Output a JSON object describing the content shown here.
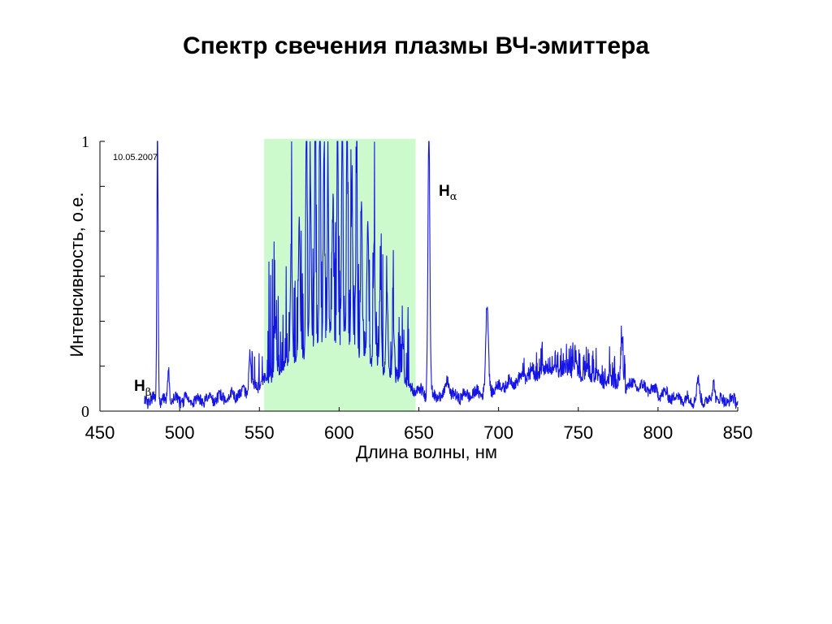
{
  "slide": {
    "title": "Спектр свечения плазмы ВЧ-эмиттера"
  },
  "chart_data": {
    "type": "line",
    "title": "Спектр свечения плазмы ВЧ-эмиттера",
    "xlabel": "Длина волны, нм",
    "ylabel": "Интенсивность, о.е.",
    "xlim": [
      450,
      850
    ],
    "ylim": [
      0,
      1
    ],
    "x_ticks": [
      450,
      500,
      550,
      600,
      650,
      700,
      750,
      800,
      850
    ],
    "y_tick_labels": {
      "0": "0",
      "1": "1"
    },
    "date_annotation": "10.05.2007",
    "grid": false,
    "line_color": "#1414e6",
    "highlight": {
      "from": 553,
      "to": 648,
      "color": "#ccfacc"
    },
    "annotations": [
      {
        "text": "H",
        "subscript": "β",
        "x": 486
      },
      {
        "text": "H",
        "subscript": "α",
        "x": 656.3
      }
    ],
    "series": [
      {
        "x_range": [
          478,
          850
        ],
        "baseline": 0.04,
        "peaks": [
          {
            "x": 486.1,
            "y": 1.0,
            "w": 0.4
          },
          {
            "x": 493.0,
            "y": 0.12,
            "w": 0.5
          },
          {
            "x": 544.0,
            "y": 0.14,
            "w": 0.6
          },
          {
            "x": 560.0,
            "y": 0.16,
            "w": 0.6
          },
          {
            "x": 570.0,
            "y": 0.42,
            "w": 0.6
          },
          {
            "x": 575.0,
            "y": 0.5,
            "w": 0.5
          },
          {
            "x": 579.5,
            "y": 1.0,
            "w": 0.4
          },
          {
            "x": 582.0,
            "y": 0.62,
            "w": 0.5
          },
          {
            "x": 585.0,
            "y": 0.88,
            "w": 0.4
          },
          {
            "x": 588.0,
            "y": 1.0,
            "w": 0.4
          },
          {
            "x": 590.5,
            "y": 0.72,
            "w": 0.4
          },
          {
            "x": 593.0,
            "y": 0.67,
            "w": 0.4
          },
          {
            "x": 596.0,
            "y": 0.45,
            "w": 0.5
          },
          {
            "x": 599.0,
            "y": 0.78,
            "w": 0.4
          },
          {
            "x": 602.0,
            "y": 1.0,
            "w": 0.4
          },
          {
            "x": 605.0,
            "y": 0.92,
            "w": 0.4
          },
          {
            "x": 608.0,
            "y": 0.58,
            "w": 0.5
          },
          {
            "x": 611.0,
            "y": 0.72,
            "w": 0.4
          },
          {
            "x": 614.0,
            "y": 0.56,
            "w": 0.5
          },
          {
            "x": 618.0,
            "y": 0.5,
            "w": 0.5
          },
          {
            "x": 622.0,
            "y": 0.45,
            "w": 0.5
          },
          {
            "x": 626.0,
            "y": 0.3,
            "w": 0.6
          },
          {
            "x": 630.0,
            "y": 0.28,
            "w": 0.6
          },
          {
            "x": 634.0,
            "y": 0.22,
            "w": 0.6
          },
          {
            "x": 640.0,
            "y": 0.15,
            "w": 0.6
          },
          {
            "x": 656.3,
            "y": 1.0,
            "w": 0.6
          },
          {
            "x": 668.0,
            "y": 0.07,
            "w": 1.0
          },
          {
            "x": 692.8,
            "y": 0.31,
            "w": 0.8
          },
          {
            "x": 777.4,
            "y": 0.15,
            "w": 0.6
          },
          {
            "x": 825.0,
            "y": 0.07,
            "w": 0.8
          },
          {
            "x": 835.0,
            "y": 0.07,
            "w": 0.8
          }
        ],
        "humps": [
          {
            "x": 595.0,
            "y": 0.22,
            "w": 28.0
          },
          {
            "x": 738.0,
            "y": 0.11,
            "w": 30.0
          },
          {
            "x": 790.0,
            "y": 0.025,
            "w": 12.0
          }
        ]
      }
    ]
  }
}
